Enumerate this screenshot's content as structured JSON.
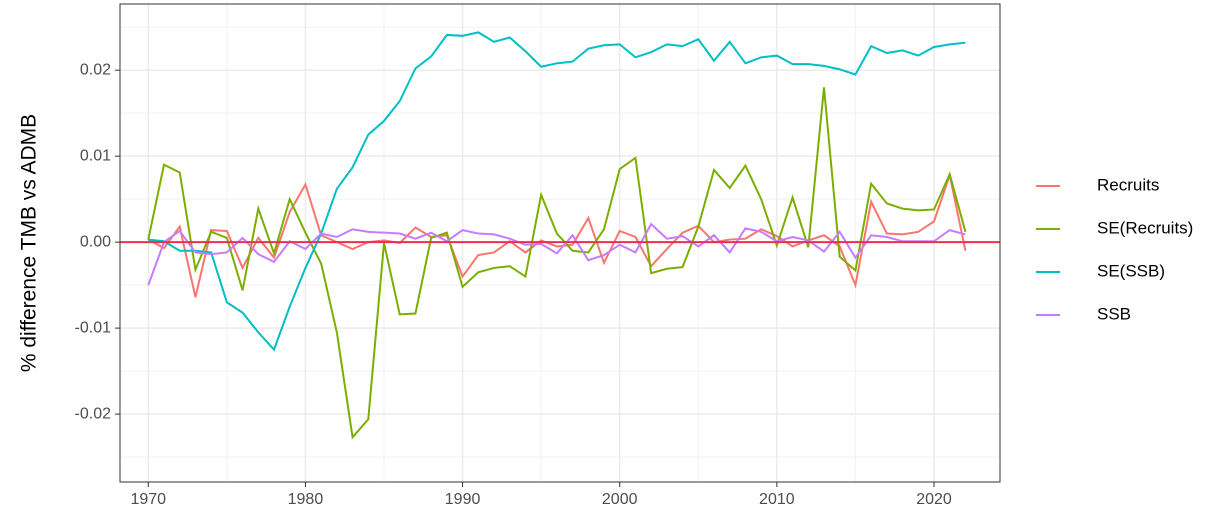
{
  "chart_data": {
    "type": "line",
    "ylabel": "% difference TMB vs ADMB",
    "x": [
      1970,
      1971,
      1972,
      1973,
      1974,
      1975,
      1976,
      1977,
      1978,
      1979,
      1980,
      1981,
      1982,
      1983,
      1984,
      1985,
      1986,
      1987,
      1988,
      1989,
      1990,
      1991,
      1992,
      1993,
      1994,
      1995,
      1996,
      1997,
      1998,
      1999,
      2000,
      2001,
      2002,
      2003,
      2004,
      2005,
      2006,
      2007,
      2008,
      2009,
      2010,
      2011,
      2012,
      2013,
      2014,
      2015,
      2016,
      2017,
      2018,
      2019,
      2020,
      2021,
      2022
    ],
    "series": [
      {
        "name": "Recruits",
        "color": "#f8766d",
        "values": [
          0.0003,
          -0.0007,
          0.0018,
          -0.0064,
          0.0014,
          0.0013,
          -0.003,
          0.0005,
          -0.0018,
          0.0035,
          0.0067,
          0.0008,
          0,
          -0.0008,
          0,
          0.0002,
          -0.0001,
          0.0017,
          0.0006,
          0.0008,
          -0.004,
          -0.0015,
          -0.0012,
          0.0001,
          -0.0012,
          0.0002,
          -0.0005,
          -0.0003,
          0.0028,
          -0.0024,
          0.0013,
          0.0006,
          -0.0028,
          -0.0008,
          0.0011,
          0.0019,
          0,
          0.0003,
          0.0004,
          0.0015,
          0.0007,
          -0.0005,
          0.0002,
          0.0008,
          -0.0005,
          -0.005,
          0.0047,
          0.001,
          0.0009,
          0.0012,
          0.0024,
          0.0078,
          -0.001
        ]
      },
      {
        "name": "SE(Recruits)",
        "color": "#7cae00",
        "values": [
          0.0003,
          0.009,
          0.0081,
          -0.0032,
          0.0012,
          0.0005,
          -0.0056,
          0.0039,
          -0.0013,
          0.005,
          0.0011,
          -0.0025,
          -0.0105,
          -0.0227,
          -0.0206,
          -0.0001,
          -0.0084,
          -0.0083,
          0.0005,
          0.0011,
          -0.0052,
          -0.0035,
          -0.003,
          -0.0028,
          -0.004,
          0.0055,
          0.001,
          -0.001,
          -0.0012,
          0.0015,
          0.0085,
          0.0098,
          -0.0036,
          -0.0031,
          -0.0029,
          0.0018,
          0.0084,
          0.0063,
          0.0089,
          0.005,
          -0.0004,
          0.0052,
          -0.0006,
          0.018,
          -0.0017,
          -0.0033,
          0.0068,
          0.0045,
          0.0039,
          0.0037,
          0.0038,
          0.0079,
          0.0012
        ]
      },
      {
        "name": "SE(SSB)",
        "color": "#00bfc4",
        "values": [
          0.0003,
          0.0001,
          -0.001,
          -0.001,
          -0.0012,
          -0.007,
          -0.0082,
          -0.0105,
          -0.0125,
          -0.0075,
          -0.003,
          0.001,
          0.0062,
          0.0087,
          0.0125,
          0.0141,
          0.0164,
          0.0202,
          0.0216,
          0.0241,
          0.024,
          0.0244,
          0.0233,
          0.0238,
          0.0222,
          0.0204,
          0.0208,
          0.021,
          0.0225,
          0.0229,
          0.023,
          0.0215,
          0.0221,
          0.023,
          0.0228,
          0.0236,
          0.0211,
          0.0233,
          0.0208,
          0.0215,
          0.0217,
          0.0207,
          0.0207,
          0.0205,
          0.0201,
          0.0195,
          0.0228,
          0.022,
          0.0223,
          0.0217,
          0.0227,
          0.023,
          0.0232
        ]
      },
      {
        "name": "SSB",
        "color": "#c77cff",
        "values": [
          -0.005,
          0,
          0.0013,
          -0.0012,
          -0.0014,
          -0.0012,
          0.0005,
          -0.0014,
          -0.0023,
          0.0001,
          -0.0008,
          0.001,
          0.0006,
          0.0015,
          0.0012,
          0.0011,
          0.001,
          0.0004,
          0.0011,
          0.0001,
          0.0014,
          0.001,
          0.0009,
          0.0004,
          -0.0003,
          -0.0002,
          -0.0013,
          0.0008,
          -0.0021,
          -0.0015,
          -0.0003,
          -0.0012,
          0.0021,
          0.0004,
          0.0007,
          -0.0005,
          0.0008,
          -0.0012,
          0.0016,
          0.0012,
          0.0001,
          0.0006,
          0.0002,
          -0.0011,
          0.0012,
          -0.0018,
          0.0008,
          0.0006,
          0.0001,
          0.0001,
          0.0001,
          0.0014,
          0.0009
        ]
      }
    ],
    "xlim": [
      1968.2,
      2024.2
    ],
    "xticks": [
      1970,
      1980,
      1990,
      2000,
      2010,
      2020
    ],
    "ylim": [
      -0.0279,
      0.0277
    ],
    "yticks": [
      -0.02,
      -0.01,
      {
        "value": 0,
        "label": "0.00"
      },
      0.01,
      0.02
    ],
    "hline": {
      "value": 0,
      "color": "#e8304f"
    },
    "grid": true,
    "legend": "right"
  }
}
